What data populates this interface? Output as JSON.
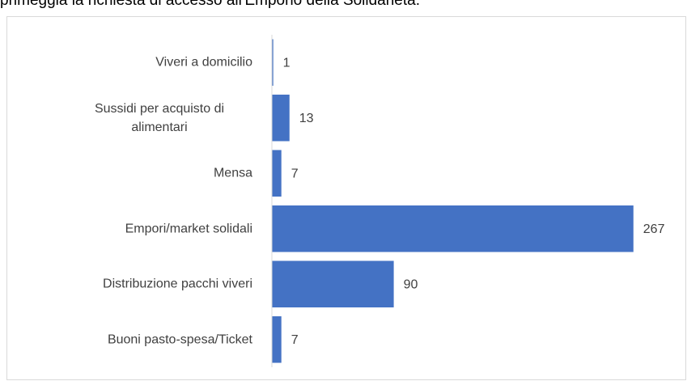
{
  "chart_data": {
    "type": "barh",
    "title": "primeggia la richiesta di accesso all'Emporio della Solidarietà.",
    "categories": [
      "Viveri a domicilio",
      "Sussidi per acquisto di alimentari",
      "Mensa",
      "Empori/market solidali",
      "Distribuzione pacchi viveri",
      "Buoni pasto-spesa/Ticket"
    ],
    "values": [
      1,
      13,
      7,
      267,
      90,
      7
    ],
    "color": "#4472c4",
    "xlim": [
      0,
      300
    ]
  }
}
